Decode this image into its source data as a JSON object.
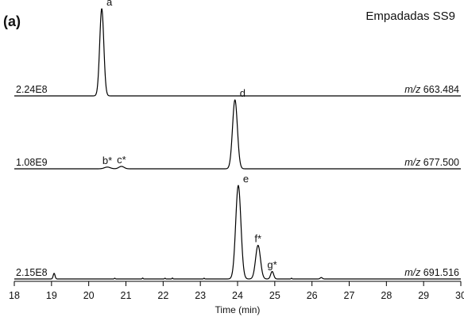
{
  "panel_label": "(a)",
  "sample_label": "Empadadas SS9",
  "chart_data": {
    "type": "line",
    "title": "",
    "xlabel": "Time (min)",
    "xlim": [
      18,
      30
    ],
    "xticks": [
      18,
      19,
      20,
      21,
      22,
      23,
      24,
      25,
      26,
      27,
      28,
      29,
      30
    ],
    "grid": false,
    "series": [
      {
        "name": "m/z 663.484",
        "mz_prefix": "m/z",
        "mz_value": "663.484",
        "max_intensity_label": "2.24E8",
        "peaks": [
          {
            "label": "a",
            "rt": 20.35,
            "height": 1.0,
            "width": 0.055
          }
        ],
        "noise": []
      },
      {
        "name": "m/z 677.500",
        "mz_prefix": "m/z",
        "mz_value": "677.500",
        "max_intensity_label": "1.08E9",
        "peaks": [
          {
            "label": "b*",
            "rt": 20.5,
            "height": 0.025,
            "width": 0.08
          },
          {
            "label": "c*",
            "rt": 20.88,
            "height": 0.035,
            "width": 0.07
          },
          {
            "label": "d",
            "rt": 23.93,
            "height": 1.0,
            "width": 0.065
          }
        ],
        "noise": []
      },
      {
        "name": "m/z 691.516",
        "mz_prefix": "m/z",
        "mz_value": "691.516",
        "max_intensity_label": "2.15E8",
        "peaks": [
          {
            "label": "",
            "rt": 19.07,
            "height": 0.06,
            "width": 0.025
          },
          {
            "label": "e",
            "rt": 24.02,
            "height": 1.0,
            "width": 0.07
          },
          {
            "label": "f*",
            "rt": 24.55,
            "height": 0.36,
            "width": 0.065
          },
          {
            "label": "g*",
            "rt": 24.93,
            "height": 0.08,
            "width": 0.04
          },
          {
            "label": "",
            "rt": 26.25,
            "height": 0.015,
            "width": 0.03
          }
        ],
        "noise": [
          {
            "rt": 20.7,
            "height": 0.008
          },
          {
            "rt": 21.45,
            "height": 0.01
          },
          {
            "rt": 22.05,
            "height": 0.008
          },
          {
            "rt": 22.25,
            "height": 0.01
          },
          {
            "rt": 23.1,
            "height": 0.008
          },
          {
            "rt": 25.45,
            "height": 0.008
          }
        ]
      }
    ]
  }
}
